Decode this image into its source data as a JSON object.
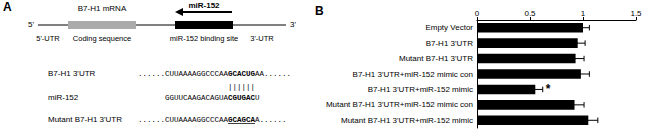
{
  "diagram": {
    "label": "A",
    "end_5": "5'",
    "end_3": "3'",
    "mrna_label": "B7-H1 mRNA",
    "mirna_label": "miR-152",
    "regions": [
      "5'-UTR",
      "Coding sequence",
      "miR-152 binding site",
      "3'-UTR"
    ],
    "alignment": [
      {
        "name": "B7-H1 3'UTR",
        "prefix": "......CUUAAAAGGCCCAA",
        "highlight": "GCACUG",
        "suffix": "AA......"
      },
      {
        "name": "miR-152",
        "prefix": "GGUUCAAGACAGUA",
        "highlight": "CGUGAC",
        "suffix": "U"
      },
      {
        "name": "Mutant B7-H1 3'UTR",
        "prefix": "......CUUAAAAGGCCCAA",
        "highlight": "GCAGCA",
        "suffix": "A......"
      }
    ],
    "pairing": "||||||"
  },
  "chart_data": {
    "type": "bar",
    "orientation": "horizontal",
    "title": "B",
    "categories": [
      "Empty Vector",
      "B7-H1 3'UTR",
      "Mutant B7-H1 3'UTR",
      "B7-H1 3'UTR+miR-152 mimic con",
      "B7-H1 3'UTR+miR-152 mimic",
      "Mutant B7-H1 3'UTR+miR-152 mimic con",
      "Mutant B7-H1 3'UTR+miR-152 mimic"
    ],
    "values": [
      1.0,
      0.95,
      0.93,
      0.98,
      0.55,
      0.92,
      1.05
    ],
    "errors": [
      0.06,
      0.07,
      0.08,
      0.08,
      0.07,
      0.09,
      0.09
    ],
    "color": "#000000",
    "xlim": [
      0,
      1.5
    ],
    "xticks": [
      0,
      0.5,
      1,
      1.5
    ],
    "grid": false,
    "annotations": [
      {
        "text": "*",
        "category": "B7-H1 3'UTR+miR-152 mimic"
      }
    ]
  }
}
